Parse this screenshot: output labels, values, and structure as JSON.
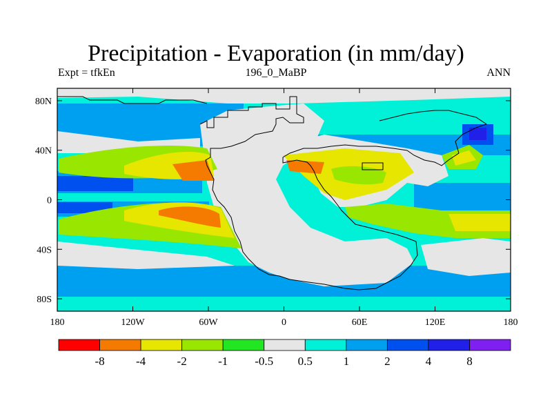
{
  "title": "Precipitation - Evaporation (in mm/day)",
  "left_label": "Expt = tfkEn",
  "center_label": "196_0_MaBP",
  "right_label": "ANN",
  "x_ticks": [
    {
      "lon": -180,
      "label": "180"
    },
    {
      "lon": -120,
      "label": "120W"
    },
    {
      "lon": -60,
      "label": "60W"
    },
    {
      "lon": 0,
      "label": "0"
    },
    {
      "lon": 60,
      "label": "60E"
    },
    {
      "lon": 120,
      "label": "120E"
    },
    {
      "lon": 180,
      "label": "180"
    }
  ],
  "y_ticks": [
    {
      "lat": 80,
      "label": "80N"
    },
    {
      "lat": 40,
      "label": "40N"
    },
    {
      "lat": 0,
      "label": "0"
    },
    {
      "lat": -40,
      "label": "40S"
    },
    {
      "lat": -80,
      "label": "80S"
    }
  ],
  "colorbar": {
    "colors": [
      "#ff0000",
      "#f57a00",
      "#e6e600",
      "#99e600",
      "#22e622",
      "#e6e6e6",
      "#00f0d8",
      "#00a0f0",
      "#0050f0",
      "#2020e8",
      "#8020f0"
    ],
    "labels": [
      "-8",
      "-4",
      "-2",
      "-1",
      "-0.5",
      "0.5",
      "1",
      "2",
      "4",
      "8"
    ]
  },
  "colors": {
    "land_neutral": "#e6e6e6",
    "ocean_base": "#00f0d8",
    "coast": "#000000"
  }
}
